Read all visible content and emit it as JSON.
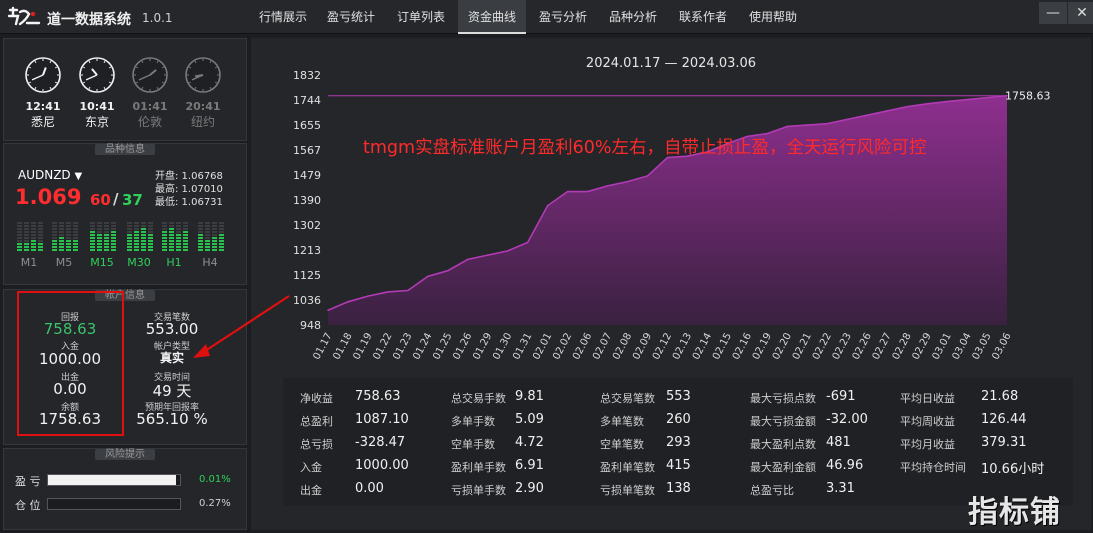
{
  "app": {
    "name": "道一数据系统",
    "version": "1.0.1"
  },
  "tabs": [
    {
      "label": "行情展示"
    },
    {
      "label": "盈亏统计"
    },
    {
      "label": "订单列表"
    },
    {
      "label": "资金曲线",
      "active": true
    },
    {
      "label": "盈亏分析"
    },
    {
      "label": "品种分析"
    },
    {
      "label": "联系作者"
    },
    {
      "label": "使用帮助"
    }
  ],
  "window_buttons": {
    "minimize": "—",
    "close": "✕"
  },
  "clocks": [
    {
      "time": "12:41",
      "city": "悉尼",
      "active": true
    },
    {
      "time": "10:41",
      "city": "东京",
      "active": true
    },
    {
      "time": "01:41",
      "city": "伦敦",
      "active": false
    },
    {
      "time": "20:41",
      "city": "纽约",
      "active": false
    }
  ],
  "sections": {
    "symbol_info": "品种信息",
    "account_info": "帐户信息",
    "risk": "风险提示"
  },
  "symbol": {
    "name": "AUDNZD",
    "dropdown_glyph": "▼",
    "price_main": "1.069",
    "price_digits_1": "60",
    "price_sep": "/",
    "price_digits_2": "37",
    "open": "开盘: 1.06768",
    "high": "最高: 1.07010",
    "low": "最低: 1.06731",
    "timeframes": [
      {
        "label": "M1",
        "on": false,
        "level": 0.35
      },
      {
        "label": "M5",
        "on": false,
        "level": 0.45
      },
      {
        "label": "M15",
        "on": true,
        "level": 0.7
      },
      {
        "label": "M30",
        "on": true,
        "level": 0.8
      },
      {
        "label": "H1",
        "on": true,
        "level": 0.75
      },
      {
        "label": "H4",
        "on": false,
        "level": 0.55
      }
    ]
  },
  "account": {
    "return_label": "回报",
    "return_value": "758.63",
    "deposit_label": "入金",
    "deposit_value": "1000.00",
    "withdraw_label": "出金",
    "withdraw_value": "0.00",
    "balance_label": "余额",
    "balance_value": "1758.63",
    "trades_label": "交易笔数",
    "trades_value": "553.00",
    "type_label": "帐户类型",
    "type_value": "真实",
    "time_label": "交易时间",
    "time_value": "49 天",
    "annual_label": "预期年回报率",
    "annual_value": "565.10 %"
  },
  "risk": {
    "pnl_label": "盈 亏",
    "pnl_value": "0.01%",
    "pnl_fill": 0.97,
    "pos_label": "仓 位",
    "pos_value": "0.27%",
    "pos_fill": 0.0
  },
  "chart_data": {
    "type": "area",
    "title": "2024.01.17 — 2024.03.06",
    "annotation": "tmgm实盘标准账户月盈利60%左右，自带止损止盈，全天运行风险可控",
    "last_label": "1758.63",
    "ylim": [
      948,
      1832
    ],
    "yticks": [
      "1832",
      "1744",
      "1655",
      "1567",
      "1479",
      "1390",
      "1302",
      "1213",
      "1125",
      "1036",
      "948"
    ],
    "x": [
      "01.17",
      "01.18",
      "01.19",
      "01.22",
      "01.23",
      "01.24",
      "01.25",
      "01.26",
      "01.29",
      "01.30",
      "01.31",
      "02.01",
      "02.02",
      "02.06",
      "02.07",
      "02.08",
      "02.09",
      "02.12",
      "02.13",
      "02.14",
      "02.15",
      "02.16",
      "02.19",
      "02.20",
      "02.21",
      "02.22",
      "02.23",
      "02.26",
      "02.27",
      "02.28",
      "02.29",
      "03.01",
      "03.04",
      "03.05",
      "03.06"
    ],
    "values": [
      1000,
      1030,
      1050,
      1065,
      1070,
      1120,
      1140,
      1180,
      1195,
      1210,
      1240,
      1370,
      1420,
      1420,
      1440,
      1455,
      1475,
      1540,
      1545,
      1560,
      1590,
      1615,
      1625,
      1650,
      1655,
      1660,
      1675,
      1690,
      1705,
      1720,
      1730,
      1738,
      1745,
      1752,
      1758.63
    ],
    "colors": {
      "line": "#b23ab5",
      "fill_top": "#8e2f8f",
      "fill_bottom": "#3a2140",
      "annotation": "#ff2a2a"
    }
  },
  "stats": [
    [
      {
        "k": "净收益",
        "v": "758.63"
      },
      {
        "k": "总盈利",
        "v": "1087.10"
      },
      {
        "k": "总亏损",
        "v": "-328.47"
      },
      {
        "k": "入金",
        "v": "1000.00"
      },
      {
        "k": "出金",
        "v": "0.00"
      }
    ],
    [
      {
        "k": "总交易手数",
        "v": "9.81"
      },
      {
        "k": "多单手数",
        "v": "5.09"
      },
      {
        "k": "空单手数",
        "v": "4.72"
      },
      {
        "k": "盈利单手数",
        "v": "6.91"
      },
      {
        "k": "亏损单手数",
        "v": "2.90"
      }
    ],
    [
      {
        "k": "总交易笔数",
        "v": "553"
      },
      {
        "k": "多单笔数",
        "v": "260"
      },
      {
        "k": "空单笔数",
        "v": "293"
      },
      {
        "k": "盈利单笔数",
        "v": "415"
      },
      {
        "k": "亏损单笔数",
        "v": "138"
      }
    ],
    [
      {
        "k": "最大亏损点数",
        "v": "-691"
      },
      {
        "k": "最大亏损金额",
        "v": "-32.00"
      },
      {
        "k": "最大盈利点数",
        "v": "481"
      },
      {
        "k": "最大盈利金额",
        "v": "46.96"
      },
      {
        "k": "总盈亏比",
        "v": "3.31"
      }
    ],
    [
      {
        "k": "平均日收益",
        "v": "21.68"
      },
      {
        "k": "平均周收益",
        "v": "126.44"
      },
      {
        "k": "平均月收益",
        "v": "379.31"
      },
      {
        "k": "平均持仓时间",
        "v": "10.66小时"
      }
    ]
  ],
  "watermark": "指标铺"
}
